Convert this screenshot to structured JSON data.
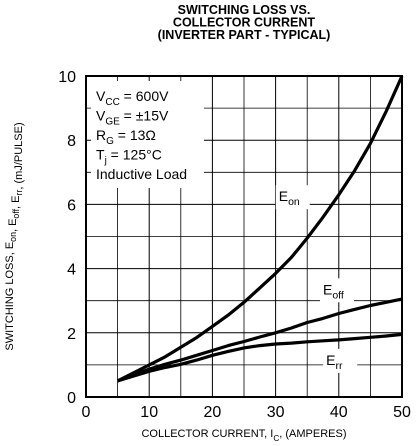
{
  "chart_data": {
    "type": "line",
    "title": [
      "SWITCHING LOSS VS.",
      "COLLECTOR CURRENT",
      "(INVERTER PART - TYPICAL)"
    ],
    "xlabel": {
      "main": "COLLECTOR CURRENT, I",
      "sub": "C",
      "tail": ", (AMPERES)"
    },
    "ylabel": "SWITCHING LOSS, E_on, E_off, E_rr, (mJ/PULSE)",
    "xlim": [
      0,
      50
    ],
    "ylim": [
      0,
      10
    ],
    "xticks": [
      0,
      10,
      20,
      30,
      40,
      50
    ],
    "yticks": [
      0,
      2,
      4,
      6,
      8,
      10
    ],
    "grid": true,
    "conditions": [
      {
        "main": "V",
        "sub": "CC",
        "tail": " = 600V"
      },
      {
        "main": "V",
        "sub": "GE",
        "tail": " = ±15V"
      },
      {
        "main": "R",
        "sub": "G",
        "tail": " = 13Ω"
      },
      {
        "main": "T",
        "sub": "j",
        "tail": " = 125°C"
      },
      {
        "main": "Inductive Load",
        "sub": "",
        "tail": ""
      }
    ],
    "series": [
      {
        "name": "E",
        "name_sub": "on",
        "x": [
          5,
          7.5,
          10,
          12.5,
          15,
          17.5,
          20,
          22.5,
          25,
          27.5,
          30,
          32.5,
          35,
          37.5,
          40,
          42.5,
          45,
          47.5,
          50
        ],
        "y": [
          0.5,
          0.75,
          1.0,
          1.25,
          1.55,
          1.85,
          2.2,
          2.55,
          2.95,
          3.4,
          3.85,
          4.35,
          4.95,
          5.6,
          6.3,
          7.05,
          7.9,
          8.9,
          10.0
        ]
      },
      {
        "name": "E",
        "name_sub": "off",
        "x": [
          5,
          7.5,
          10,
          12.5,
          15,
          17.5,
          20,
          22.5,
          25,
          27.5,
          30,
          32.5,
          35,
          37.5,
          40,
          42.5,
          45,
          47.5,
          50
        ],
        "y": [
          0.5,
          0.68,
          0.87,
          1.02,
          1.15,
          1.3,
          1.45,
          1.6,
          1.73,
          1.87,
          2.0,
          2.15,
          2.32,
          2.45,
          2.6,
          2.73,
          2.85,
          2.95,
          3.05
        ]
      },
      {
        "name": "E",
        "name_sub": "rr",
        "x": [
          5,
          7.5,
          10,
          12.5,
          15,
          17.5,
          20,
          22.5,
          25,
          27.5,
          30,
          32.5,
          35,
          37.5,
          40,
          42.5,
          45,
          47.5,
          50
        ],
        "y": [
          0.5,
          0.65,
          0.8,
          0.92,
          1.02,
          1.15,
          1.3,
          1.42,
          1.53,
          1.6,
          1.65,
          1.68,
          1.72,
          1.75,
          1.78,
          1.82,
          1.86,
          1.9,
          1.95
        ]
      }
    ]
  }
}
